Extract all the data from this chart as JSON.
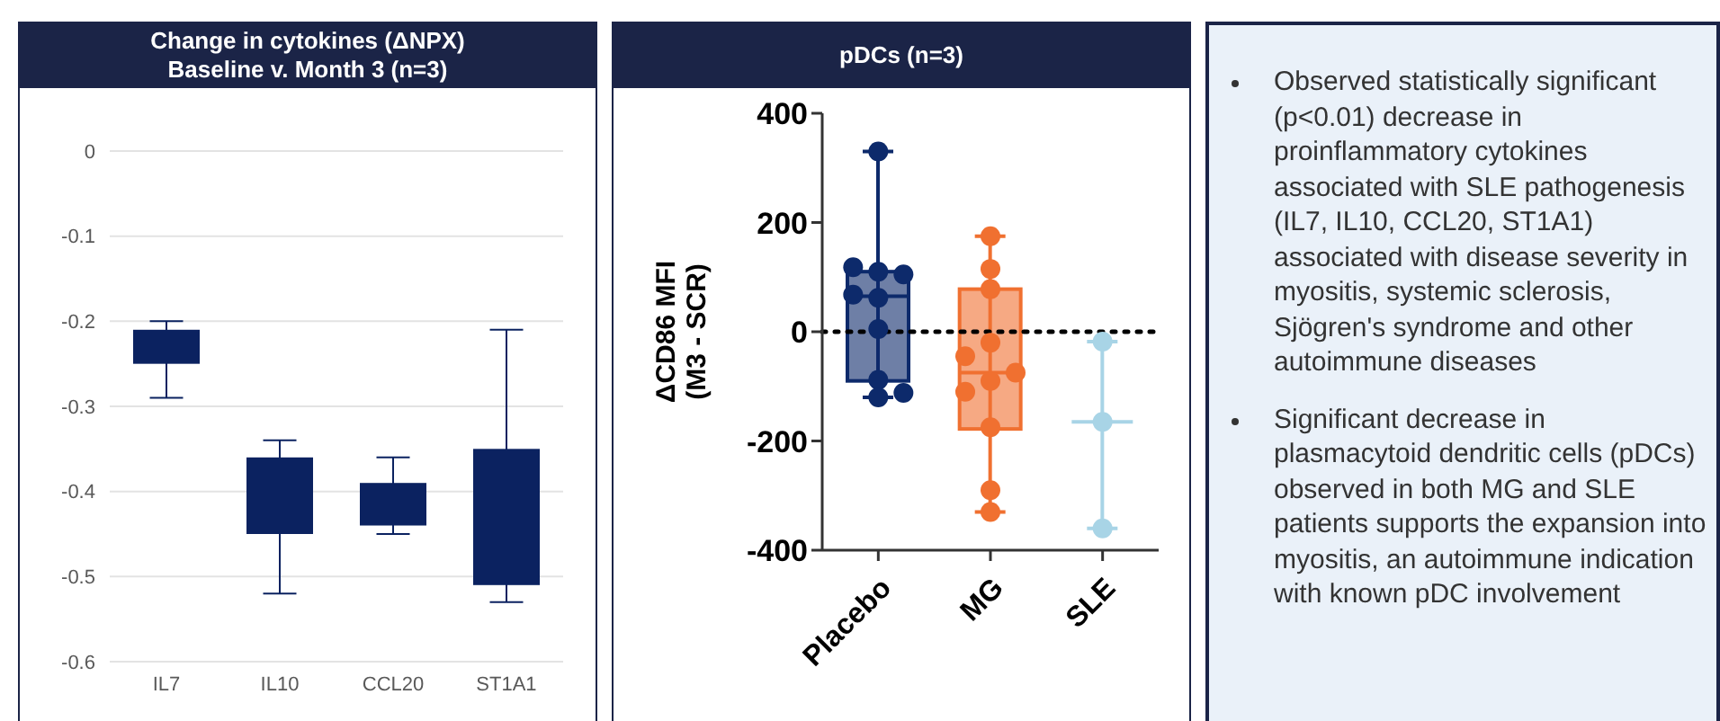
{
  "chart_data": [
    {
      "type": "bar",
      "title": "Change in cytokines (ΔNPX)\nBaseline v. Month 3 (n=3)",
      "categories": [
        "IL7",
        "IL10",
        "CCL20",
        "ST1A1"
      ],
      "base": [
        -0.25,
        -0.45,
        -0.44,
        -0.51
      ],
      "values": [
        0.04,
        0.09,
        0.05,
        0.16
      ],
      "errors": [
        [
          -0.29,
          -0.2
        ],
        [
          -0.52,
          -0.34
        ],
        [
          -0.45,
          -0.36
        ],
        [
          -0.53,
          -0.21
        ]
      ],
      "color": "#0b2260",
      "ylim": [
        -0.6,
        0
      ],
      "yticks": [
        0,
        -0.1,
        -0.2,
        -0.3,
        -0.4,
        -0.5,
        -0.6
      ],
      "grid": "y"
    },
    {
      "type": "box",
      "title": "pDCs (n=3)",
      "ylabel": "ΔCD86 MFI\n(M3 - SCR)",
      "categories": [
        "Placebo",
        "MG",
        "SLE"
      ],
      "colors": [
        "#0d2a6b",
        "#f07030",
        "#a8d4e6"
      ],
      "boxes": [
        {
          "low": -120,
          "q1": -90,
          "median": 65,
          "q3": 110,
          "high": 330
        },
        {
          "low": -330,
          "q1": -178,
          "median": -75,
          "q3": 78,
          "high": 175
        },
        {
          "low": -360,
          "q1": -165,
          "median": -165,
          "q3": -165,
          "high": -18
        }
      ],
      "series": [
        {
          "type": "scatter",
          "x": [
            "Placebo",
            "Placebo",
            "Placebo",
            "Placebo",
            "Placebo",
            "Placebo",
            "Placebo",
            "Placebo",
            "Placebo",
            "Placebo",
            "MG",
            "MG",
            "MG",
            "MG",
            "MG",
            "MG",
            "MG",
            "MG",
            "MG",
            "MG",
            "MG",
            "SLE",
            "SLE",
            "SLE"
          ],
          "values": [
            330,
            110,
            118,
            105,
            62,
            68,
            5,
            -88,
            -120,
            -112,
            175,
            115,
            78,
            -20,
            -45,
            -90,
            -75,
            -110,
            -175,
            -290,
            -330,
            -18,
            -165,
            -360
          ],
          "colors": [
            "#0d2a6b",
            "#0d2a6b",
            "#0d2a6b",
            "#0d2a6b",
            "#0d2a6b",
            "#0d2a6b",
            "#0d2a6b",
            "#0d2a6b",
            "#0d2a6b",
            "#0d2a6b",
            "#f07030",
            "#f07030",
            "#f07030",
            "#f07030",
            "#f07030",
            "#f07030",
            "#f07030",
            "#f07030",
            "#f07030",
            "#f07030",
            "#f07030",
            "#a8d4e6",
            "#a8d4e6",
            "#a8d4e6"
          ]
        }
      ],
      "marker": "circle",
      "ylim": [
        -400,
        400
      ],
      "yticks": [
        -400,
        -200,
        0,
        200,
        400
      ],
      "grid": false,
      "ref_lines": [
        {
          "axis": "y",
          "value": 0,
          "color": "#000000",
          "line_style": "dotted"
        }
      ]
    },
    {
      "type": "other",
      "annotations": [
        "Observed statistically significant (p<0.01) decrease in proinflammatory cytokines associated with SLE pathogenesis (IL7, IL10, CCL20, ST1A1) associated with disease severity in myositis, systemic sclerosis, Sjögren's syndrome and other autoimmune diseases",
        "Significant decrease in plasmacytoid dendritic cells (pDCs) observed in both MG and SLE patients supports the expansion into myositis, an autoimmune indication with known pDC involvement"
      ]
    }
  ]
}
